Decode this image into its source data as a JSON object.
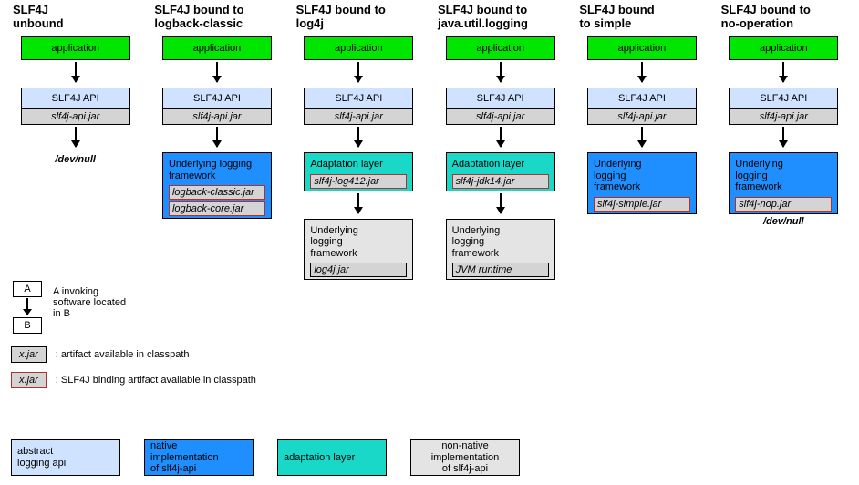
{
  "columns": [
    {
      "title": "SLF4J\nunbound",
      "app": "application",
      "api": "SLF4J API",
      "api_jar": "slf4j-api.jar",
      "terminal": "/dev/null"
    },
    {
      "title": "SLF4J bound to\nlogback-classic",
      "app": "application",
      "api": "SLF4J API",
      "api_jar": "slf4j-api.jar",
      "mid": {
        "color": "blue",
        "label": "Underlying logging\nframework",
        "jars": [
          "logback-classic.jar",
          "logback-core.jar"
        ],
        "binding": true
      }
    },
    {
      "title": "SLF4J bound to\nlog4j",
      "app": "application",
      "api": "SLF4J API",
      "api_jar": "slf4j-api.jar",
      "mid": {
        "color": "teal",
        "label": "Adaptation layer",
        "jars": [
          "slf4j-log412.jar"
        ],
        "binding": true
      },
      "bottom": {
        "color": "gray",
        "label": "Underlying\nlogging\nframework",
        "jars": [
          "log4j.jar"
        ],
        "binding": false
      }
    },
    {
      "title": "SLF4J bound to\njava.util.logging",
      "app": "application",
      "api": "SLF4J API",
      "api_jar": "slf4j-api.jar",
      "mid": {
        "color": "teal",
        "label": "Adaptation layer",
        "jars": [
          "slf4j-jdk14.jar"
        ],
        "binding": true
      },
      "bottom": {
        "color": "gray",
        "label": "Underlying\nlogging\nframework",
        "jars": [
          "JVM runtime"
        ],
        "binding": false
      }
    },
    {
      "title": "SLF4J bound\nto simple",
      "app": "application",
      "api": "SLF4J API",
      "api_jar": "slf4j-api.jar",
      "mid": {
        "color": "blue",
        "label": "Underlying\nlogging\nframework",
        "jars": [
          "slf4j-simple.jar"
        ],
        "binding": true
      }
    },
    {
      "title": "SLF4J bound to\nno-operation",
      "app": "application",
      "api": "SLF4J API",
      "api_jar": "slf4j-api.jar",
      "mid": {
        "color": "blue",
        "label": "Underlying\nlogging\nframework",
        "jars": [
          "slf4j-nop.jar"
        ],
        "binding": true
      },
      "terminal": "/dev/null"
    }
  ],
  "legend_ab": {
    "a": "A",
    "b": "B",
    "text": "A invoking\nsoftware located\nin B"
  },
  "legend_jar": {
    "label": "x.jar",
    "text": ": artifact available in classpath"
  },
  "legend_binding": {
    "label": "x.jar",
    "text": ": SLF4J binding artifact available in classpath"
  },
  "color_legend": [
    {
      "cls": "sw-lightblue",
      "label": "abstract\nlogging api"
    },
    {
      "cls": "sw-blue",
      "label": "native implementation\nof slf4j-api"
    },
    {
      "cls": "sw-teal",
      "label": "adaptation layer"
    },
    {
      "cls": "sw-gray",
      "label": "non-native\nimplementation\nof slf4j-api"
    }
  ],
  "colors": {
    "app": "#00e600",
    "api": "#cfe2ff",
    "jar": "#d4d4d4",
    "blue": "#1f8fff",
    "teal": "#19d8c8",
    "gray": "#e4e4e4",
    "binding_border": "#b03030",
    "background": "#ffffff"
  }
}
